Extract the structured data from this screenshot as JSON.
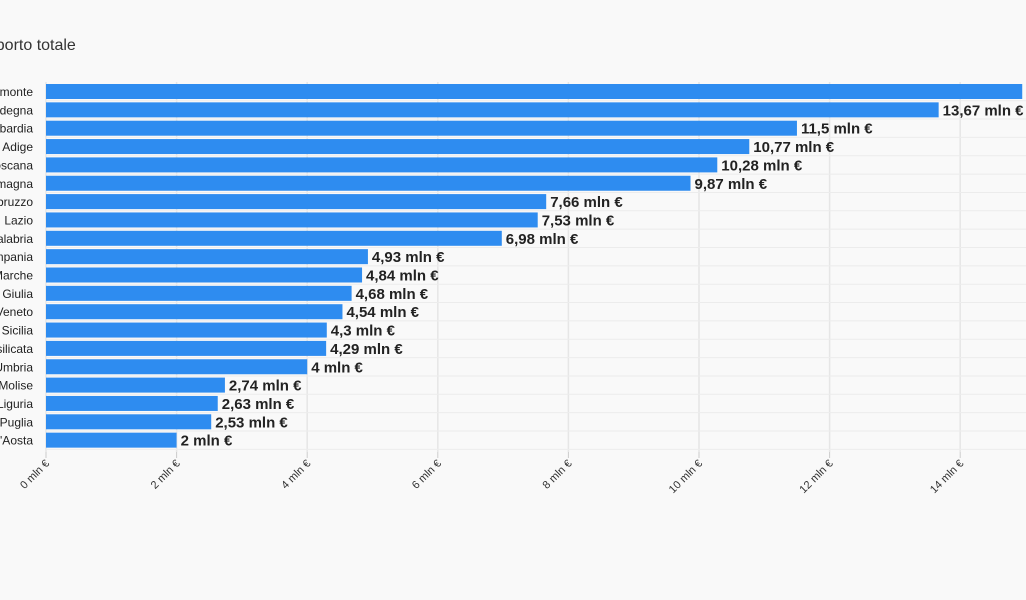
{
  "chart_data": {
    "type": "bar",
    "orientation": "horizontal",
    "title": "Importo totale",
    "xlabel": "",
    "ylabel": "",
    "unit_suffix": " mln €",
    "xlim": [
      0,
      15
    ],
    "x_ticks": [
      0,
      2,
      4,
      6,
      8,
      10,
      12,
      14
    ],
    "x_tick_labels": [
      "0 mln €",
      "2 mln €",
      "4 mln €",
      "6 mln €",
      "8 mln €",
      "10 mln €",
      "12 mln €",
      "14 mln €"
    ],
    "grid": true,
    "bar_color": "#2e8cf0",
    "categories": [
      "Piemonte",
      "Sardegna",
      "Lombardia",
      "Trentino-Alto Adige",
      "Toscana",
      "Emilia-Romagna",
      "Abruzzo",
      "Lazio",
      "Calabria",
      "Campania",
      "Marche",
      "Friuli-Venezia Giulia",
      "Veneto",
      "Sicilia",
      "Basilicata",
      "Umbria",
      "Molise",
      "Liguria",
      "Puglia",
      "Valle d'Aosta"
    ],
    "values": [
      14.95,
      13.67,
      11.5,
      10.77,
      10.28,
      9.87,
      7.66,
      7.53,
      6.98,
      4.93,
      4.84,
      4.68,
      4.54,
      4.3,
      4.29,
      4.0,
      2.74,
      2.63,
      2.53,
      2.0
    ],
    "value_labels": [
      "",
      "13,67 mln €",
      "11,5 mln €",
      "10,77 mln €",
      "10,28 mln €",
      "9,87 mln €",
      "7,66 mln €",
      "7,53 mln €",
      "6,98 mln €",
      "4,93 mln €",
      "4,84 mln €",
      "4,68 mln €",
      "4,54 mln €",
      "4,3 mln €",
      "4,29 mln €",
      "4 mln €",
      "2,74 mln €",
      "2,63 mln €",
      "2,53 mln €",
      "2 mln €"
    ]
  }
}
